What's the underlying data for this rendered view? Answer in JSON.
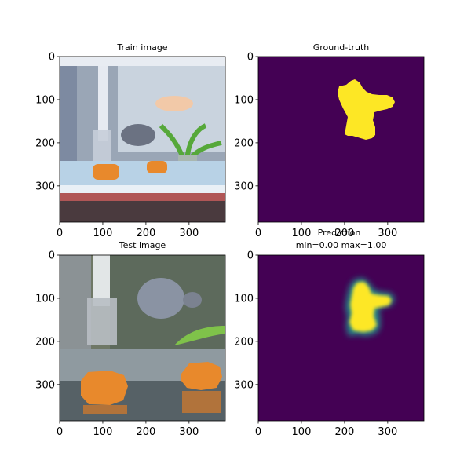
{
  "chart_data": [
    {
      "type": "image",
      "title": "Train image",
      "subtitle": "",
      "xticks": [
        "0",
        "100",
        "200",
        "300"
      ],
      "yticks": [
        "0",
        "100",
        "200",
        "300"
      ],
      "xlim": [
        0,
        384
      ],
      "ylim": [
        384,
        0
      ],
      "image_content": "aquarium photo: bubble stream, fish, plant, orange rocks"
    },
    {
      "type": "heatmap",
      "title": "Ground-truth",
      "subtitle": "",
      "xticks": [
        "0",
        "100",
        "200",
        "300"
      ],
      "yticks": [
        "0",
        "100",
        "200",
        "300"
      ],
      "xlim": [
        0,
        384
      ],
      "ylim": [
        384,
        0
      ],
      "background_color": "#440154",
      "mask_color": "#fde725",
      "mask_region_x": [
        180,
        320
      ],
      "mask_region_y": [
        55,
        190
      ]
    },
    {
      "type": "image",
      "title": "Test image",
      "subtitle": "",
      "xticks": [
        "0",
        "100",
        "200",
        "300"
      ],
      "yticks": [
        "0",
        "100",
        "200",
        "300"
      ],
      "xlim": [
        0,
        384
      ],
      "ylim": [
        384,
        0
      ],
      "image_content": "aquarium photo: bubble stream, fish, plant leaf, orange rocks"
    },
    {
      "type": "heatmap",
      "title": "Prediction",
      "subtitle": "min=0.00 max=1.00",
      "xticks": [
        "0",
        "100",
        "200",
        "300"
      ],
      "yticks": [
        "0",
        "100",
        "200",
        "300"
      ],
      "xlim": [
        0,
        384
      ],
      "ylim": [
        384,
        0
      ],
      "value_min": 0.0,
      "value_max": 1.0,
      "background_color": "#440154",
      "mask_color": "#fde725",
      "edge_color": "#21918c",
      "mask_region_x": [
        200,
        315
      ],
      "mask_region_y": [
        55,
        190
      ]
    }
  ]
}
